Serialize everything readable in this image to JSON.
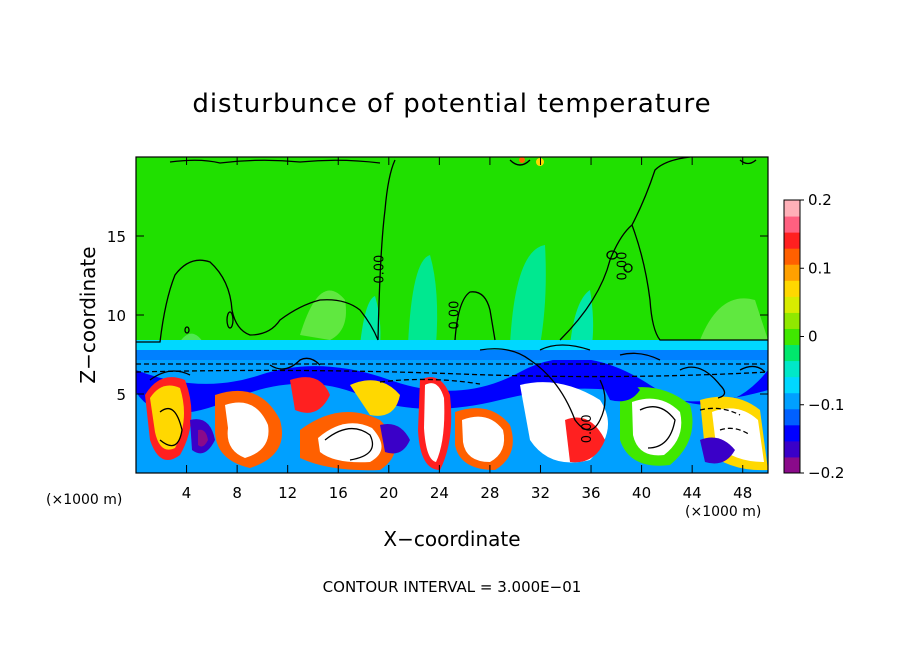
{
  "chart_data": {
    "type": "heatmap",
    "title": "disturbunce of potential temperature",
    "xlabel": "X−coordinate",
    "ylabel": "Z−coordinate",
    "x_unit_left": "(×1000 m)",
    "x_unit_right": "(×1000 m)",
    "xlim": [
      0,
      50
    ],
    "ylim": [
      0,
      20
    ],
    "x_ticks": [
      4,
      8,
      12,
      16,
      20,
      24,
      28,
      32,
      36,
      40,
      44,
      48
    ],
    "y_ticks": [
      5,
      10,
      15
    ],
    "colorbar": {
      "range": [
        -0.2,
        0.2
      ],
      "ticks": [
        {
          "value": 0.2,
          "label": "0.2"
        },
        {
          "value": 0.1,
          "label": "0.1"
        },
        {
          "value": 0,
          "label": "0"
        },
        {
          "value": -0.1,
          "label": "−0.1"
        },
        {
          "value": -0.2,
          "label": "−0.2"
        }
      ],
      "colors": [
        "#8a0a8a",
        "#3a00c8",
        "#0000ff",
        "#0060ff",
        "#00a0ff",
        "#00d8ff",
        "#00e8c8",
        "#00e86c",
        "#40e800",
        "#90e800",
        "#d8ec00",
        "#ffd800",
        "#ffa000",
        "#ff6000",
        "#ff2020",
        "#ff6080",
        "#ffb0b8"
      ]
    },
    "contour_labels": [
      {
        "text": "0.00",
        "x": 19.6,
        "z": 12.9
      },
      {
        "text": "0.00",
        "x": 25.5,
        "z": 10.0
      },
      {
        "text": "0.00",
        "x": 38.8,
        "z": 13.1
      },
      {
        "text": "0.00",
        "x": 36.0,
        "z": 2.8
      }
    ],
    "footer": "CONTOUR INTERVAL = 3.000E−01"
  }
}
